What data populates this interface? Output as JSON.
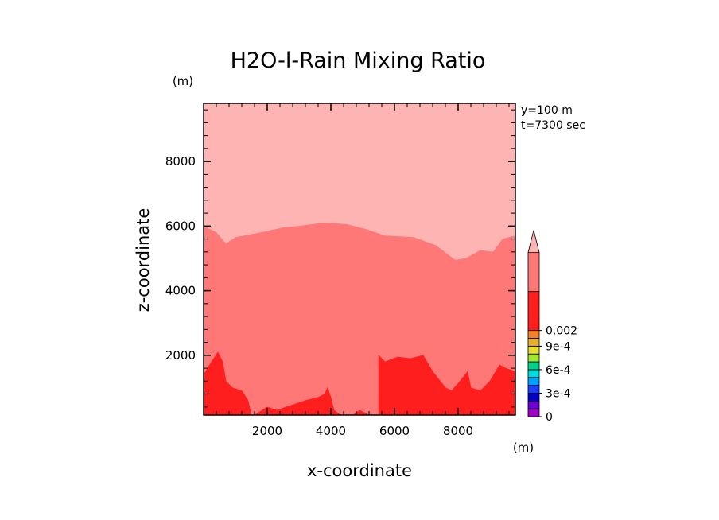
{
  "chart_data": {
    "type": "heatmap",
    "title": "H2O-l-Rain Mixing Ratio",
    "xlabel": "x-coordinate",
    "ylabel": "z-coordinate",
    "x_unit": "(m)",
    "y_unit": "(m)",
    "annotations": [
      "y=100 m",
      "t=7300 sec"
    ],
    "xlim": [
      0,
      9800
    ],
    "ylim": [
      150,
      9800
    ],
    "x_ticks": [
      2000,
      4000,
      6000,
      8000
    ],
    "y_ticks": [
      2000,
      4000,
      6000,
      8000
    ],
    "x_tick_labels": [
      "2000",
      "4000",
      "6000",
      "8000"
    ],
    "y_tick_labels": [
      "2000",
      "4000",
      "6000",
      "8000"
    ],
    "regions": [
      {
        "level": "top",
        "color": "#ffb4b4",
        "polygon": [
          [
            0,
            9800
          ],
          [
            9800,
            9800
          ],
          [
            9800,
            5700
          ],
          [
            9400,
            5600
          ],
          [
            9100,
            5200
          ],
          [
            8700,
            5250
          ],
          [
            8250,
            5000
          ],
          [
            7900,
            4950
          ],
          [
            7300,
            5400
          ],
          [
            6600,
            5650
          ],
          [
            5700,
            5700
          ],
          [
            5100,
            5900
          ],
          [
            4500,
            6050
          ],
          [
            3800,
            6100
          ],
          [
            3000,
            6000
          ],
          [
            2500,
            5950
          ],
          [
            1800,
            5800
          ],
          [
            1000,
            5650
          ],
          [
            700,
            5450
          ],
          [
            400,
            5800
          ],
          [
            0,
            6000
          ]
        ]
      },
      {
        "level": "mid",
        "color": "#ff7878",
        "polygon": [
          [
            0,
            6000
          ],
          [
            400,
            5800
          ],
          [
            700,
            5450
          ],
          [
            1000,
            5650
          ],
          [
            1800,
            5800
          ],
          [
            2500,
            5950
          ],
          [
            3000,
            6000
          ],
          [
            3800,
            6100
          ],
          [
            4500,
            6050
          ],
          [
            5100,
            5900
          ],
          [
            5700,
            5700
          ],
          [
            6600,
            5650
          ],
          [
            7300,
            5400
          ],
          [
            7900,
            4950
          ],
          [
            8250,
            5000
          ],
          [
            8700,
            5250
          ],
          [
            9100,
            5200
          ],
          [
            9400,
            5600
          ],
          [
            9800,
            5700
          ],
          [
            9800,
            150
          ],
          [
            0,
            150
          ]
        ]
      },
      {
        "level": "low",
        "color": "#ff1e1e",
        "polygon": [
          [
            0,
            150
          ],
          [
            0,
            1400
          ],
          [
            250,
            1800
          ],
          [
            450,
            2100
          ],
          [
            600,
            1800
          ],
          [
            700,
            1200
          ],
          [
            900,
            1000
          ],
          [
            1200,
            900
          ],
          [
            1400,
            600
          ],
          [
            1500,
            150
          ]
        ]
      },
      {
        "level": "low",
        "color": "#ff1e1e",
        "polygon": [
          [
            1600,
            150
          ],
          [
            2000,
            400
          ],
          [
            2300,
            300
          ],
          [
            2600,
            400
          ],
          [
            2900,
            500
          ],
          [
            3200,
            600
          ],
          [
            3600,
            700
          ],
          [
            3800,
            800
          ],
          [
            3900,
            1000
          ],
          [
            4000,
            700
          ],
          [
            4100,
            300
          ],
          [
            4300,
            150
          ]
        ]
      },
      {
        "level": "low",
        "color": "#ff1e1e",
        "polygon": [
          [
            4700,
            150
          ],
          [
            4900,
            300
          ],
          [
            5200,
            150
          ]
        ]
      },
      {
        "level": "low",
        "color": "#ff1e1e",
        "polygon": [
          [
            5500,
            150
          ],
          [
            5500,
            2000
          ],
          [
            5700,
            1800
          ],
          [
            6100,
            1950
          ],
          [
            6500,
            1900
          ],
          [
            6900,
            2000
          ],
          [
            7200,
            1500
          ],
          [
            7600,
            1000
          ],
          [
            7800,
            900
          ],
          [
            8100,
            1250
          ],
          [
            8300,
            1500
          ],
          [
            8400,
            1000
          ],
          [
            8700,
            900
          ],
          [
            9000,
            1200
          ],
          [
            9300,
            1700
          ],
          [
            9500,
            1600
          ],
          [
            9800,
            1500
          ],
          [
            9800,
            150
          ]
        ]
      }
    ],
    "colorbar": {
      "levels": [
        0,
        0.0001,
        0.0002,
        0.0003,
        0.0004,
        0.0005,
        0.0006,
        0.0007,
        0.0008,
        0.0009,
        0.001,
        0.002
      ],
      "colors": [
        "#a000c8",
        "#6e00dc",
        "#0000c8",
        "#1e3cff",
        "#00a0ff",
        "#00dcdc",
        "#00d28c",
        "#a0e632",
        "#e6dc32",
        "#e6af2d",
        "#f08228",
        "#ff1e1e",
        "#ff7878",
        "#ffb4b4"
      ],
      "tick_labels": [
        "0",
        "3e-4",
        "6e-4",
        "9e-4",
        "0.002"
      ],
      "extend": "max"
    }
  }
}
